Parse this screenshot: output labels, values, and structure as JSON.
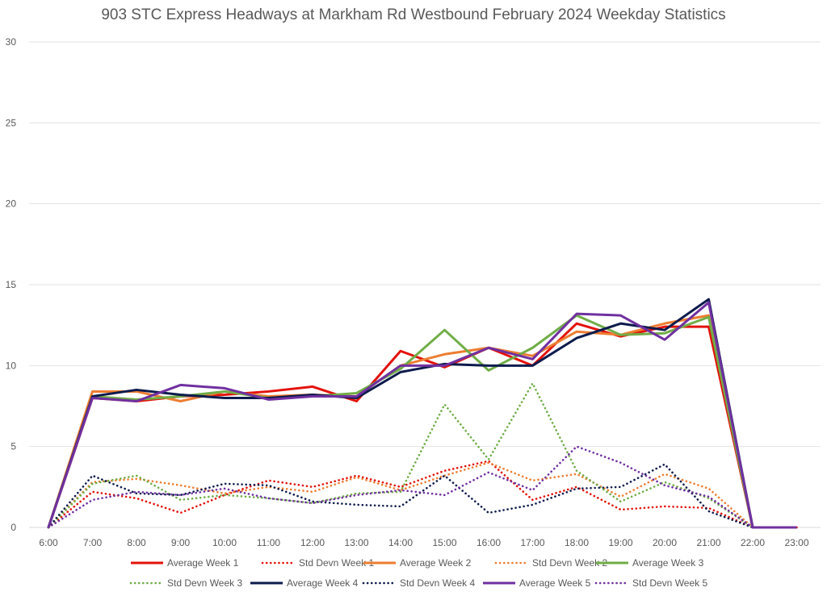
{
  "chart_data": {
    "type": "line",
    "title": "903 STC Express Headways at Markham Rd Westbound February 2024 Weekday Statistics",
    "xlabel": "",
    "ylabel": "",
    "ylim": [
      0,
      30
    ],
    "yticks": [
      0,
      5,
      10,
      15,
      20,
      25,
      30
    ],
    "grid": true,
    "legend_position": "bottom",
    "categories": [
      "6:00",
      "7:00",
      "8:00",
      "9:00",
      "10:00",
      "11:00",
      "12:00",
      "13:00",
      "14:00",
      "15:00",
      "16:00",
      "17:00",
      "18:00",
      "19:00",
      "20:00",
      "21:00",
      "22:00",
      "23:00"
    ],
    "series": [
      {
        "name": "Average Week 1",
        "color": "#e3120b",
        "style": "solid",
        "values": [
          0,
          8.0,
          7.8,
          8.1,
          8.2,
          8.4,
          8.7,
          7.8,
          10.9,
          9.9,
          11.1,
          10.0,
          12.6,
          11.8,
          12.4,
          12.4,
          0,
          0
        ]
      },
      {
        "name": "Std Devn Week 1",
        "color": "#e3120b",
        "style": "dotted",
        "values": [
          0,
          2.2,
          1.8,
          0.9,
          2.0,
          2.9,
          2.5,
          3.2,
          2.5,
          3.5,
          4.1,
          1.7,
          2.5,
          1.1,
          1.3,
          1.2,
          0,
          0
        ]
      },
      {
        "name": "Average Week 2",
        "color": "#ed7d31",
        "style": "solid",
        "values": [
          0,
          8.4,
          8.4,
          7.8,
          8.4,
          8.1,
          8.2,
          8.1,
          10.0,
          10.7,
          11.1,
          10.6,
          12.1,
          11.9,
          12.6,
          13.1,
          0,
          0
        ]
      },
      {
        "name": "Std Devn Week 2",
        "color": "#ed7d31",
        "style": "dotted",
        "values": [
          0,
          2.8,
          3.0,
          2.6,
          2.1,
          2.5,
          2.2,
          3.1,
          2.3,
          3.2,
          4.0,
          2.9,
          3.3,
          1.9,
          3.3,
          2.4,
          0,
          0
        ]
      },
      {
        "name": "Average Week 3",
        "color": "#70ad47",
        "style": "solid",
        "values": [
          0,
          8.1,
          7.9,
          8.1,
          8.4,
          8.0,
          8.1,
          8.3,
          9.8,
          12.2,
          9.7,
          11.1,
          13.1,
          11.9,
          12.0,
          13.0,
          0,
          0
        ]
      },
      {
        "name": "Std Devn Week 3",
        "color": "#70ad47",
        "style": "dotted",
        "values": [
          0,
          2.7,
          3.2,
          1.7,
          2.0,
          1.8,
          1.5,
          2.1,
          2.2,
          7.6,
          4.2,
          8.9,
          3.5,
          1.6,
          2.8,
          1.8,
          0,
          0
        ]
      },
      {
        "name": "Average Week 4",
        "color": "#0d1b4c",
        "style": "solid",
        "values": [
          0,
          8.1,
          8.5,
          8.2,
          8.0,
          8.0,
          8.2,
          8.0,
          9.6,
          10.1,
          10.0,
          10.0,
          11.7,
          12.6,
          12.2,
          14.1,
          0,
          0
        ]
      },
      {
        "name": "Std Devn Week 4",
        "color": "#0d1b4c",
        "style": "dotted",
        "values": [
          0,
          3.2,
          2.1,
          2.0,
          2.7,
          2.6,
          1.6,
          1.4,
          1.3,
          3.2,
          0.9,
          1.4,
          2.4,
          2.5,
          3.9,
          1.0,
          0,
          0
        ]
      },
      {
        "name": "Average Week 5",
        "color": "#7030a0",
        "style": "solid",
        "values": [
          0,
          8.0,
          7.8,
          8.8,
          8.6,
          7.9,
          8.1,
          8.1,
          10.0,
          10.0,
          11.1,
          10.4,
          13.2,
          13.1,
          11.6,
          13.9,
          0,
          0
        ]
      },
      {
        "name": "Std Devn Week 5",
        "color": "#7030a0",
        "style": "dotted",
        "values": [
          0,
          1.7,
          2.2,
          2.0,
          2.4,
          1.8,
          1.5,
          2.0,
          2.3,
          2.0,
          3.4,
          2.3,
          5.0,
          4.0,
          2.6,
          1.9,
          0,
          0
        ]
      }
    ]
  }
}
